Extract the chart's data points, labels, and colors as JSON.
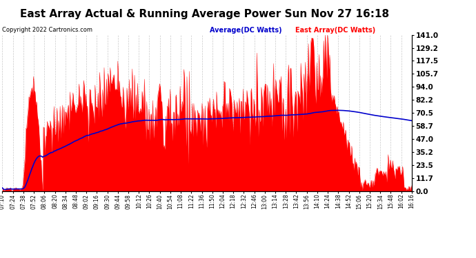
{
  "title": "East Array Actual & Running Average Power Sun Nov 27 16:18",
  "copyright": "Copyright 2022 Cartronics.com",
  "legend_avg": "Average(DC Watts)",
  "legend_east": "East Array(DC Watts)",
  "ylabel_right_ticks": [
    141.0,
    129.2,
    117.5,
    105.7,
    94.0,
    82.2,
    70.5,
    58.7,
    47.0,
    35.2,
    23.5,
    11.7,
    0.0
  ],
  "ymin": 0.0,
  "ymax": 141.0,
  "background_color": "#ffffff",
  "plot_bg_color": "#ffffff",
  "grid_color": "#bbbbbb",
  "fill_color": "#ff0000",
  "avg_line_color": "#0000cc",
  "title_color": "#000000",
  "title_fontsize": 11,
  "x_tick_labels": [
    "07:10",
    "07:24",
    "07:38",
    "07:52",
    "08:06",
    "08:20",
    "08:34",
    "08:48",
    "09:02",
    "09:16",
    "09:30",
    "09:44",
    "09:58",
    "10:12",
    "10:26",
    "10:40",
    "10:54",
    "11:08",
    "11:22",
    "11:36",
    "11:50",
    "12:04",
    "12:18",
    "12:32",
    "12:46",
    "13:00",
    "13:14",
    "13:28",
    "13:42",
    "13:56",
    "14:10",
    "14:24",
    "14:38",
    "14:52",
    "15:06",
    "15:20",
    "15:34",
    "15:48",
    "16:02",
    "16:16"
  ],
  "num_points": 540
}
